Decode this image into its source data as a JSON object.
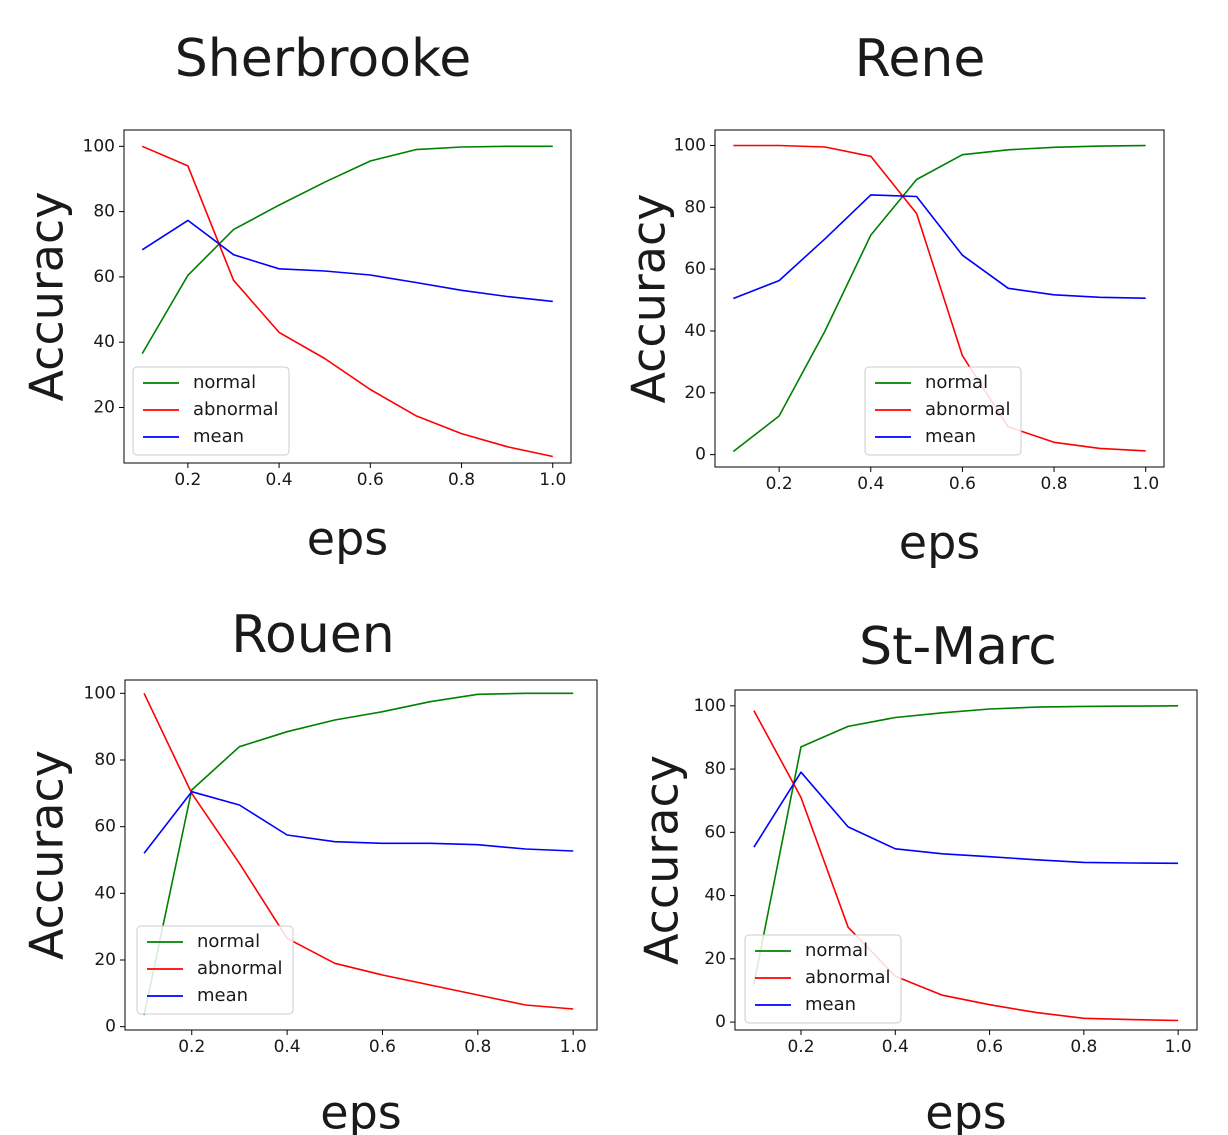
{
  "chart_data": [
    {
      "type": "line",
      "title": "Sherbrooke",
      "xlabel": "eps",
      "ylabel": "Accuracy",
      "x": [
        0.1,
        0.2,
        0.3,
        0.4,
        0.5,
        0.6,
        0.7,
        0.8,
        0.9,
        1.0
      ],
      "xlim": [
        0.06,
        1.04
      ],
      "ylim": [
        3,
        105
      ],
      "xticks": [
        "0.2",
        "0.4",
        "0.6",
        "0.8",
        "1.0"
      ],
      "yticks": [
        "20",
        "40",
        "60",
        "80",
        "100"
      ],
      "legend_position": "lower-left",
      "series": [
        {
          "name": "normal",
          "color": "#008000",
          "values": [
            36.5,
            60.5,
            74.5,
            82,
            89,
            95.5,
            99,
            99.8,
            100,
            100
          ]
        },
        {
          "name": "abnormal",
          "color": "#ff0000",
          "values": [
            100,
            94,
            59,
            43,
            35,
            25.5,
            17.5,
            12,
            8,
            5
          ]
        },
        {
          "name": "mean",
          "color": "#0000ff",
          "values": [
            68.3,
            77.3,
            66.8,
            62.5,
            61.8,
            60.6,
            58.3,
            55.9,
            54,
            52.5
          ]
        }
      ]
    },
    {
      "type": "line",
      "title": "Rene",
      "xlabel": "eps",
      "ylabel": "Accuracy",
      "x": [
        0.1,
        0.2,
        0.3,
        0.4,
        0.5,
        0.6,
        0.7,
        0.8,
        0.9,
        1.0
      ],
      "xlim": [
        0.06,
        1.04
      ],
      "ylim": [
        -4,
        105
      ],
      "xticks": [
        "0.2",
        "0.4",
        "0.6",
        "0.8",
        "1.0"
      ],
      "yticks": [
        "0",
        "20",
        "40",
        "60",
        "80",
        "100"
      ],
      "legend_position": "lower-center",
      "series": [
        {
          "name": "normal",
          "color": "#008000",
          "values": [
            1,
            12.5,
            40,
            71,
            89,
            97,
            98.6,
            99.4,
            99.8,
            100
          ]
        },
        {
          "name": "abnormal",
          "color": "#ff0000",
          "values": [
            100,
            100,
            99.5,
            96.5,
            78,
            32,
            9,
            4,
            2,
            1.2
          ]
        },
        {
          "name": "mean",
          "color": "#0000ff",
          "values": [
            50.5,
            56.3,
            69.8,
            84,
            83.5,
            64.5,
            53.8,
            51.7,
            50.9,
            50.6
          ]
        }
      ]
    },
    {
      "type": "line",
      "title": "Rouen",
      "xlabel": "eps",
      "ylabel": "Accuracy",
      "x": [
        0.1,
        0.2,
        0.3,
        0.4,
        0.5,
        0.6,
        0.7,
        0.8,
        0.9,
        1.0
      ],
      "xlim": [
        0.06,
        1.05
      ],
      "ylim": [
        -1,
        104
      ],
      "xticks": [
        "0.2",
        "0.4",
        "0.6",
        "0.8",
        "1.0"
      ],
      "yticks": [
        "0",
        "20",
        "40",
        "60",
        "80",
        "100"
      ],
      "legend_position": "lower-left",
      "series": [
        {
          "name": "normal",
          "color": "#008000",
          "values": [
            3.5,
            71,
            84,
            88.5,
            92,
            94.5,
            97.5,
            99.7,
            100,
            100
          ]
        },
        {
          "name": "abnormal",
          "color": "#ff0000",
          "values": [
            100,
            70,
            49,
            26.5,
            19,
            15.5,
            12.5,
            9.5,
            6.5,
            5.3
          ]
        },
        {
          "name": "mean",
          "color": "#0000ff",
          "values": [
            52,
            70.5,
            66.5,
            57.5,
            55.5,
            55,
            55,
            54.6,
            53.3,
            52.7
          ]
        }
      ]
    },
    {
      "type": "line",
      "title": "St-Marc",
      "xlabel": "eps",
      "ylabel": "Accuracy",
      "x": [
        0.1,
        0.2,
        0.3,
        0.4,
        0.5,
        0.6,
        0.7,
        0.8,
        0.9,
        1.0
      ],
      "xlim": [
        0.06,
        1.04
      ],
      "ylim": [
        -2.5,
        105
      ],
      "xticks": [
        "0.2",
        "0.4",
        "0.6",
        "0.8",
        "1.0"
      ],
      "yticks": [
        "0",
        "20",
        "40",
        "60",
        "80",
        "100"
      ],
      "legend_position": "lower-left",
      "series": [
        {
          "name": "normal",
          "color": "#008000",
          "values": [
            12,
            87,
            93.5,
            96.3,
            97.8,
            99,
            99.6,
            99.8,
            99.9,
            100
          ]
        },
        {
          "name": "abnormal",
          "color": "#ff0000",
          "values": [
            98.5,
            71,
            30,
            14.5,
            8.5,
            5.5,
            3,
            1.2,
            0.8,
            0.5
          ]
        },
        {
          "name": "mean",
          "color": "#0000ff",
          "values": [
            55.3,
            79,
            61.7,
            54.8,
            53.2,
            52.3,
            51.3,
            50.5,
            50.3,
            50.2
          ]
        }
      ]
    }
  ]
}
